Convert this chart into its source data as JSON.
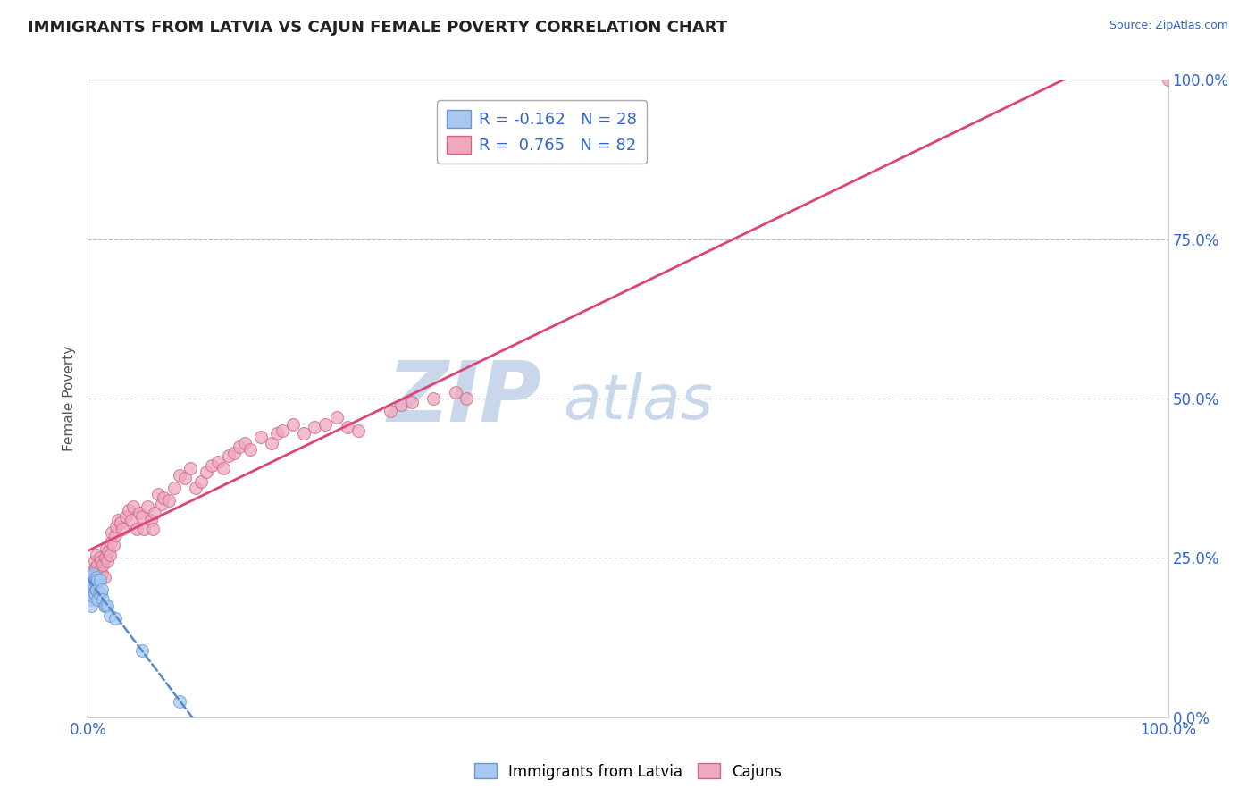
{
  "title": "IMMIGRANTS FROM LATVIA VS CAJUN FEMALE POVERTY CORRELATION CHART",
  "source_text": "Source: ZipAtlas.com",
  "ylabel": "Female Poverty",
  "xlim": [
    0.0,
    1.0
  ],
  "ylim": [
    0.0,
    1.0
  ],
  "xtick_labels": [
    "0.0%",
    "100.0%"
  ],
  "ytick_labels": [
    "0.0%",
    "25.0%",
    "50.0%",
    "75.0%",
    "100.0%"
  ],
  "ytick_vals": [
    0.0,
    0.25,
    0.5,
    0.75,
    1.0
  ],
  "grid_color": "#bbbbbb",
  "background_color": "#ffffff",
  "watermark_ZIP": "ZIP",
  "watermark_atlas": "atlas",
  "watermark_color": "#c8d8ea",
  "legend_R1": "-0.162",
  "legend_N1": "28",
  "legend_R2": "0.765",
  "legend_N2": "82",
  "legend_label1": "Immigrants from Latvia",
  "legend_label2": "Cajuns",
  "color_latvia": "#a8c8f0",
  "color_cajun": "#f0a8bc",
  "edge_color_latvia": "#6699cc",
  "edge_color_cajun": "#cc6688",
  "line_color_latvia": "#5588cc",
  "line_color_cajun": "#dd4477",
  "scatter_latvia_x": [
    0.002,
    0.003,
    0.003,
    0.004,
    0.004,
    0.005,
    0.005,
    0.005,
    0.006,
    0.006,
    0.007,
    0.007,
    0.008,
    0.008,
    0.009,
    0.009,
    0.01,
    0.011,
    0.012,
    0.013,
    0.014,
    0.015,
    0.016,
    0.018,
    0.02,
    0.025,
    0.05,
    0.085
  ],
  "scatter_latvia_y": [
    0.185,
    0.175,
    0.22,
    0.2,
    0.215,
    0.19,
    0.21,
    0.225,
    0.195,
    0.215,
    0.2,
    0.21,
    0.2,
    0.22,
    0.185,
    0.215,
    0.195,
    0.215,
    0.195,
    0.2,
    0.185,
    0.175,
    0.175,
    0.175,
    0.16,
    0.155,
    0.105,
    0.025
  ],
  "scatter_cajun_x": [
    0.002,
    0.003,
    0.004,
    0.005,
    0.005,
    0.006,
    0.006,
    0.007,
    0.007,
    0.008,
    0.008,
    0.009,
    0.009,
    0.01,
    0.01,
    0.011,
    0.012,
    0.013,
    0.014,
    0.015,
    0.016,
    0.017,
    0.018,
    0.019,
    0.02,
    0.021,
    0.022,
    0.024,
    0.025,
    0.026,
    0.028,
    0.03,
    0.032,
    0.035,
    0.038,
    0.04,
    0.042,
    0.045,
    0.048,
    0.05,
    0.052,
    0.055,
    0.058,
    0.06,
    0.062,
    0.065,
    0.068,
    0.07,
    0.075,
    0.08,
    0.085,
    0.09,
    0.095,
    0.1,
    0.105,
    0.11,
    0.115,
    0.12,
    0.125,
    0.13,
    0.135,
    0.14,
    0.145,
    0.15,
    0.16,
    0.17,
    0.175,
    0.18,
    0.19,
    0.2,
    0.21,
    0.22,
    0.23,
    0.24,
    0.25,
    0.28,
    0.29,
    0.3,
    0.32,
    0.34,
    0.35,
    1.0
  ],
  "scatter_cajun_y": [
    0.2,
    0.22,
    0.215,
    0.23,
    0.195,
    0.225,
    0.245,
    0.21,
    0.235,
    0.225,
    0.255,
    0.24,
    0.195,
    0.23,
    0.215,
    0.25,
    0.245,
    0.225,
    0.24,
    0.22,
    0.25,
    0.265,
    0.245,
    0.26,
    0.255,
    0.275,
    0.29,
    0.27,
    0.285,
    0.3,
    0.31,
    0.305,
    0.295,
    0.315,
    0.325,
    0.31,
    0.33,
    0.295,
    0.32,
    0.315,
    0.295,
    0.33,
    0.31,
    0.295,
    0.32,
    0.35,
    0.335,
    0.345,
    0.34,
    0.36,
    0.38,
    0.375,
    0.39,
    0.36,
    0.37,
    0.385,
    0.395,
    0.4,
    0.39,
    0.41,
    0.415,
    0.425,
    0.43,
    0.42,
    0.44,
    0.43,
    0.445,
    0.45,
    0.46,
    0.445,
    0.455,
    0.46,
    0.47,
    0.455,
    0.45,
    0.48,
    0.49,
    0.495,
    0.5,
    0.51,
    0.5,
    1.0
  ]
}
